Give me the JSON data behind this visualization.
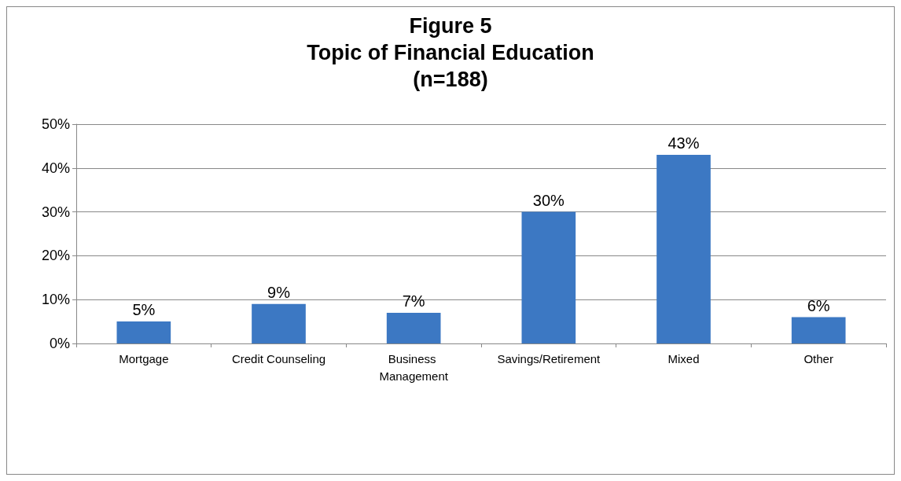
{
  "chart_data": {
    "type": "bar",
    "title": "Figure 5\nTopic of Financial Education\n(n=188)",
    "categories": [
      "Mortgage",
      "Credit Counseling",
      "Business Management",
      "Savings/Retirement",
      "Mixed",
      "Other"
    ],
    "values": [
      5,
      9,
      7,
      30,
      43,
      6
    ],
    "value_labels": [
      "5%",
      "9%",
      "7%",
      "30%",
      "43%",
      "6%"
    ],
    "color": "#3c78c3",
    "ylim": [
      0,
      50
    ],
    "yticks": [
      {
        "value": 0,
        "label": "0%"
      },
      {
        "value": 10,
        "label": "10%"
      },
      {
        "value": 20,
        "label": "20%"
      },
      {
        "value": 30,
        "label": "30%"
      },
      {
        "value": 40,
        "label": "40%"
      },
      {
        "value": 50,
        "label": "50%"
      }
    ],
    "grid": "y"
  }
}
